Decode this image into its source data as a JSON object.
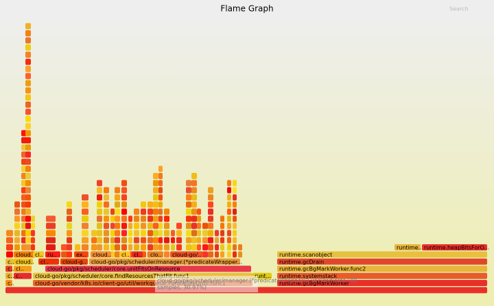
{
  "header": {
    "title": "Flame Graph",
    "search": "Search"
  },
  "frames": [
    {
      "label": "c.."
    },
    {
      "label": "cloud-go/vendor/k8s.io/client-go/util/workqueue.ParallelizeUntil.func1"
    },
    {
      "label": "runtime.gcBgMarkWorker"
    },
    {
      "label": "c.."
    },
    {
      "label": "c.."
    },
    {
      "label": "cloud-go/pkg/scheduler/core.findResourcesThatFit.func1"
    },
    {
      "label": "runt..."
    },
    {
      "label": "runtime.systemstack"
    },
    {
      "label": "c.."
    },
    {
      "label": "cl.."
    },
    {
      "label": "cloud-go/pkg/scheduler/core.unitFitsOnResource"
    },
    {
      "label": "runtime.gcBgMarkWorker.func2"
    },
    {
      "label": "c.."
    },
    {
      "label": "cloud.."
    },
    {
      "label": "cl.."
    },
    {
      "label": "cloud-g.."
    },
    {
      "label": "cloud-go/pkg/scheduler/manager.(*predicateWrapper..."
    },
    {
      "label": "runtime.gcDrain"
    },
    {
      "label": "cloud.."
    },
    {
      "label": "cl.."
    },
    {
      "label": "ru.."
    },
    {
      "label": "ex.."
    },
    {
      "label": "cloud.."
    },
    {
      "label": "cl.."
    },
    {
      "label": "cl.."
    },
    {
      "label": "clo.."
    },
    {
      "label": "cloud-go/.."
    },
    {
      "label": "runtime.scanobject"
    },
    {
      "label": "runtime..."
    },
    {
      "label": "runtime.heapBitsForO..."
    }
  ],
  "tooltip": {
    "line1": "cloud-go/pkg/scheduler/manager.(*predicateWrapper).ExecPredicate (48",
    "line2": "samples, 30.97%)"
  }
}
